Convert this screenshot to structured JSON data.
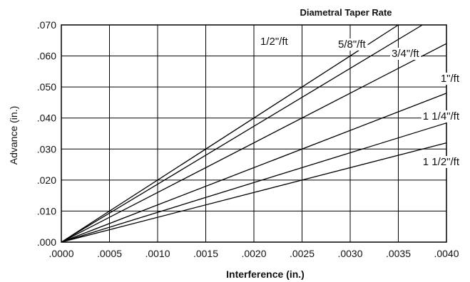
{
  "chart_data": {
    "type": "line",
    "title": "Diametral Taper Rate",
    "xlabel": "Interference (in.)",
    "ylabel": "Advance (in.)",
    "xlim": [
      0,
      0.004
    ],
    "ylim": [
      0,
      0.07
    ],
    "x_ticks": [
      ".0000",
      ".0005",
      ".0010",
      ".0015",
      ".0020",
      ".0025",
      ".0030",
      ".0035",
      ".0040"
    ],
    "y_ticks": [
      ".000",
      ".010",
      ".020",
      ".030",
      ".040",
      ".050",
      ".060",
      ".070"
    ],
    "grid": true,
    "series": [
      {
        "name": "1/2\"/ft",
        "x": [
          0,
          0.0035
        ],
        "y": [
          0,
          0.07
        ]
      },
      {
        "name": "5/8\"/ft",
        "x": [
          0,
          0.00375
        ],
        "y": [
          0,
          0.07
        ]
      },
      {
        "name": "3/4\"/ft",
        "x": [
          0,
          0.004
        ],
        "y": [
          0,
          0.064
        ]
      },
      {
        "name": "1\"/ft",
        "x": [
          0,
          0.004
        ],
        "y": [
          0,
          0.048
        ]
      },
      {
        "name": "1 1/4\"/ft",
        "x": [
          0,
          0.004
        ],
        "y": [
          0,
          0.0384
        ]
      },
      {
        "name": "1 1/2\"/ft",
        "x": [
          0,
          0.004
        ],
        "y": [
          0,
          0.032
        ]
      }
    ]
  }
}
